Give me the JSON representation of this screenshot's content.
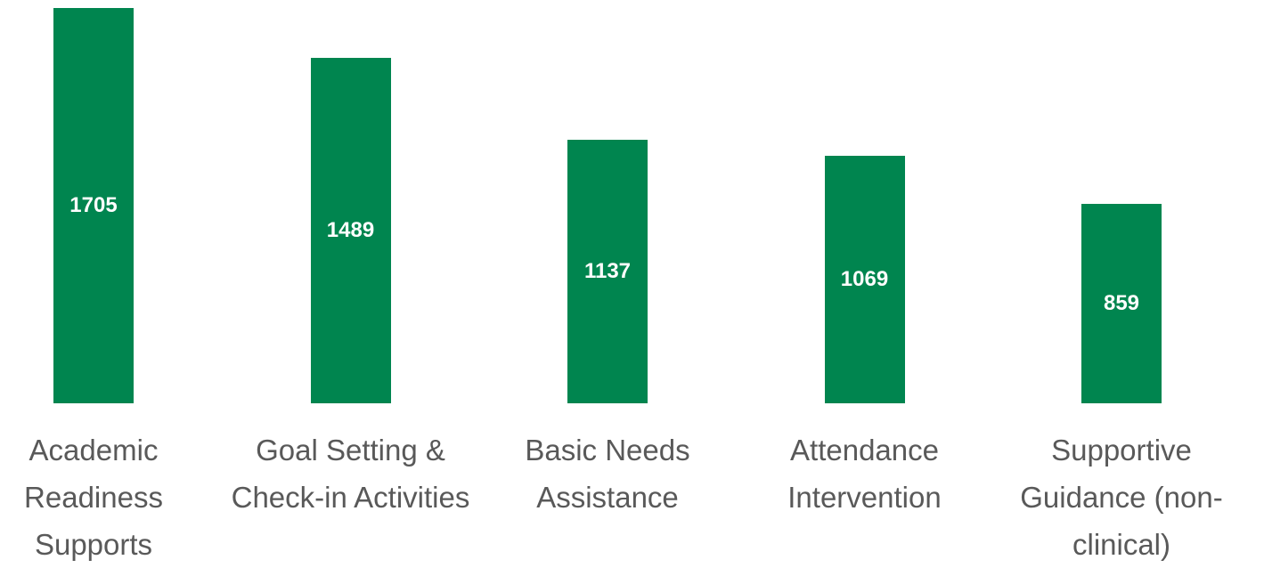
{
  "chart_data": {
    "type": "bar",
    "categories": [
      "Academic Readiness Supports",
      "Goal Setting & Check-in Activities",
      "Basic Needs Assistance",
      "Attendance Intervention",
      "Supportive Guidance (non-clinical)"
    ],
    "values": [
      1705,
      1489,
      1137,
      1069,
      859
    ],
    "color": "#00854f"
  }
}
